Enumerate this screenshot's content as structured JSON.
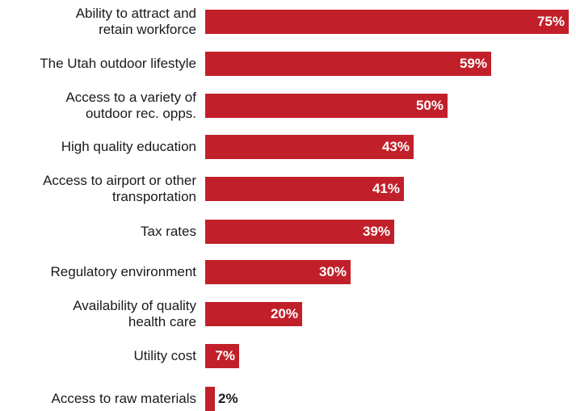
{
  "chart_data": {
    "type": "bar",
    "orientation": "horizontal",
    "categories": [
      "Ability to attract and\nretain workforce",
      "The Utah outdoor lifestyle",
      "Access to a variety of\noutdoor rec. opps.",
      "High quality education",
      "Access to airport or other\ntransportation",
      "Tax rates",
      "Regulatory environment",
      "Availability of quality\nhealth care",
      "Utility cost",
      "Access to raw materials"
    ],
    "values": [
      75,
      59,
      50,
      43,
      41,
      39,
      30,
      20,
      7,
      2
    ],
    "value_labels": [
      "75%",
      "59%",
      "50%",
      "43%",
      "41%",
      "39%",
      "30%",
      "20%",
      "7%",
      "2%"
    ],
    "title": "",
    "xlabel": "",
    "ylabel": "",
    "xlim": [
      0,
      75
    ],
    "grid": false,
    "legend": "none",
    "bar_color": "#c1202a"
  }
}
